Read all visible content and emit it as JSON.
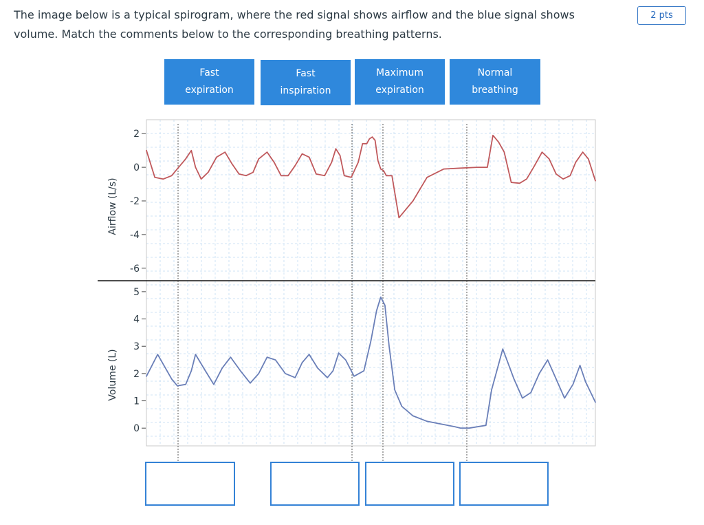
{
  "question": {
    "text": "The image below is a typical spirogram, where the red signal shows airflow and the blue signal shows volume. Match the comments below to the corresponding breathing patterns.",
    "points": "2 pts"
  },
  "answer_options": [
    {
      "label": "Fast\nexpiration"
    },
    {
      "label": "Fast\ninspiration"
    },
    {
      "label": "Maximum\nexpiration"
    },
    {
      "label": "Normal\nbreathing"
    }
  ],
  "drop_targets": [
    {
      "value": ""
    },
    {
      "value": ""
    },
    {
      "value": ""
    },
    {
      "value": ""
    }
  ],
  "chart_data": {
    "type": "line",
    "panels": [
      {
        "name": "airflow",
        "ylabel": "Airflow (L/s)",
        "yticks": [
          "2",
          "0",
          "-2",
          "-4",
          "-6"
        ],
        "ylim": [
          -6.5,
          2.5
        ],
        "series": [
          {
            "color": "#c0595c",
            "x": [
              0.0,
              0.3,
              0.6,
              0.9,
              1.15,
              1.4,
              1.6,
              1.75,
              1.95,
              2.2,
              2.5,
              2.8,
              3.05,
              3.3,
              3.55,
              3.8,
              4.0,
              4.3,
              4.55,
              4.8,
              5.05,
              5.3,
              5.55,
              5.8,
              6.05,
              6.35,
              6.6,
              6.75,
              6.9,
              7.05,
              7.3,
              7.55,
              7.7,
              7.85,
              7.95,
              8.05,
              8.15,
              8.25,
              8.35,
              8.45,
              8.55,
              8.75,
              9.0,
              9.5,
              10.0,
              10.6,
              11.2,
              11.8,
              12.15,
              12.35,
              12.55,
              12.75,
              13.0,
              13.3,
              13.55,
              13.8,
              14.1,
              14.35,
              14.6,
              14.85,
              15.1,
              15.3,
              15.55,
              15.75,
              16.0
            ],
            "y": [
              1.0,
              -0.6,
              -0.7,
              -0.5,
              0.0,
              0.5,
              1.0,
              0.0,
              -0.7,
              -0.3,
              0.6,
              0.9,
              0.2,
              -0.4,
              -0.5,
              -0.3,
              0.5,
              0.9,
              0.3,
              -0.5,
              -0.5,
              0.1,
              0.8,
              0.6,
              -0.4,
              -0.5,
              0.3,
              1.1,
              0.7,
              -0.5,
              -0.6,
              0.3,
              1.4,
              1.4,
              1.7,
              1.8,
              1.6,
              0.4,
              -0.1,
              -0.2,
              -0.5,
              -0.5,
              -3.0,
              -2.0,
              -0.6,
              -0.1,
              -0.05,
              0.0,
              0.0,
              1.9,
              1.5,
              0.9,
              -0.9,
              -0.95,
              -0.7,
              0.0,
              0.9,
              0.5,
              -0.4,
              -0.7,
              -0.5,
              0.3,
              0.9,
              0.5,
              -0.8
            ]
          }
        ]
      },
      {
        "name": "volume",
        "ylabel": "Volume (L)",
        "yticks": [
          "5",
          "4",
          "3",
          "2",
          "1",
          "0"
        ],
        "ylim": [
          -0.6,
          5.3
        ],
        "series": [
          {
            "color": "#6a7fb8",
            "x": [
              0.0,
              0.4,
              0.9,
              1.1,
              1.4,
              1.6,
              1.75,
              2.1,
              2.4,
              2.7,
              3.0,
              3.35,
              3.7,
              4.0,
              4.3,
              4.6,
              4.95,
              5.3,
              5.55,
              5.8,
              6.1,
              6.45,
              6.65,
              6.85,
              7.1,
              7.4,
              7.75,
              8.0,
              8.2,
              8.35,
              8.5,
              8.65,
              8.85,
              9.1,
              9.5,
              10.0,
              10.5,
              11.0,
              11.2,
              11.5,
              11.8,
              12.1,
              12.3,
              12.7,
              13.1,
              13.4,
              13.7,
              14.0,
              14.3,
              14.6,
              14.9,
              15.2,
              15.45,
              15.65,
              16.0
            ],
            "y": [
              1.9,
              2.7,
              1.8,
              1.55,
              1.6,
              2.1,
              2.7,
              2.1,
              1.6,
              2.2,
              2.6,
              2.1,
              1.65,
              2.0,
              2.6,
              2.5,
              2.0,
              1.85,
              2.4,
              2.7,
              2.2,
              1.85,
              2.1,
              2.75,
              2.5,
              1.9,
              2.1,
              3.2,
              4.3,
              4.8,
              4.5,
              3.0,
              1.4,
              0.8,
              0.45,
              0.25,
              0.15,
              0.05,
              0.0,
              0.0,
              0.05,
              0.1,
              1.4,
              2.9,
              1.8,
              1.1,
              1.3,
              2.0,
              2.5,
              1.8,
              1.1,
              1.6,
              2.3,
              1.7,
              0.95
            ]
          }
        ]
      }
    ]
  }
}
